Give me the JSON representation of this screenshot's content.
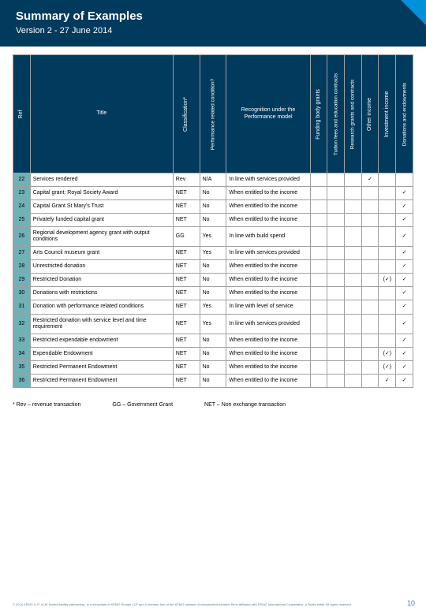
{
  "header": {
    "title": "Summary of Examples",
    "version": "Version 2 - 27 June 2014"
  },
  "columns": {
    "ref": "Ref",
    "title": "Title",
    "classification": "Classification*",
    "performance": "Performance related condition?",
    "recognition": "Recognition under the Performance model",
    "funding": "Funding body grants",
    "tuition": "Tuition fees and education contracts",
    "research": "Research grants and contracts",
    "other": "Other income",
    "investment": "Investment income",
    "donations": "Donations and endowments"
  },
  "rows": [
    {
      "ref": "22",
      "title": "Services rendered",
      "class": "Rev",
      "perf": "N/A",
      "recog": "In line with services provided",
      "c": [
        " ",
        " ",
        " ",
        "✓",
        " ",
        " "
      ]
    },
    {
      "ref": "23",
      "title": "Capital grant: Royal Society Award",
      "class": "NET",
      "perf": "No",
      "recog": "When entitled to the income",
      "c": [
        " ",
        " ",
        " ",
        " ",
        " ",
        "✓"
      ]
    },
    {
      "ref": "24",
      "title": "Capital Grant St Mary's Trust",
      "class": "NET",
      "perf": "No",
      "recog": "When entitled to the income",
      "c": [
        " ",
        " ",
        " ",
        " ",
        " ",
        "✓"
      ]
    },
    {
      "ref": "25",
      "title": "Privately funded capital grant",
      "class": "NET",
      "perf": "No",
      "recog": "When entitled to the income",
      "c": [
        " ",
        " ",
        " ",
        " ",
        " ",
        "✓"
      ]
    },
    {
      "ref": "26",
      "title": "Regional development agency grant with output conditions",
      "class": "GG",
      "perf": "Yes",
      "recog": "In line with build spend",
      "c": [
        " ",
        " ",
        " ",
        " ",
        " ",
        "✓"
      ]
    },
    {
      "ref": "27",
      "title": "Arts Council museum grant",
      "class": "NET",
      "perf": "Yes",
      "recog": "In line with services provided",
      "c": [
        " ",
        " ",
        " ",
        " ",
        " ",
        "✓"
      ]
    },
    {
      "ref": "28",
      "title": "Unrestricted donation",
      "class": "NET",
      "perf": "No",
      "recog": "When entitled to the income",
      "c": [
        " ",
        " ",
        " ",
        " ",
        " ",
        "✓"
      ]
    },
    {
      "ref": "29",
      "title": "Restricted Donation",
      "class": "NET",
      "perf": "No",
      "recog": "When entitled to the income",
      "c": [
        " ",
        " ",
        " ",
        " ",
        "(✓)",
        "✓"
      ]
    },
    {
      "ref": "30",
      "title": "Donations with restrictions",
      "class": "NET",
      "perf": "No",
      "recog": "When entitled to the income",
      "c": [
        " ",
        " ",
        " ",
        " ",
        " ",
        "✓"
      ]
    },
    {
      "ref": "31",
      "title": "Donation with performance related conditions",
      "class": "NET",
      "perf": "Yes",
      "recog": "In line with level of service",
      "c": [
        " ",
        " ",
        " ",
        " ",
        " ",
        "✓"
      ]
    },
    {
      "ref": "32",
      "title": "Restricted donation with service level and time requirement",
      "class": "NET",
      "perf": "Yes",
      "recog": "In line with services provided",
      "c": [
        " ",
        " ",
        " ",
        " ",
        " ",
        "✓"
      ]
    },
    {
      "ref": "33",
      "title": "Restricted expendable endowment",
      "class": "NET",
      "perf": "No",
      "recog": "When entitled to the income",
      "c": [
        " ",
        " ",
        " ",
        " ",
        " ",
        "✓"
      ]
    },
    {
      "ref": "34",
      "title": "Expendable Endowment",
      "class": "NET",
      "perf": "No",
      "recog": "When entitled to the income",
      "c": [
        " ",
        " ",
        " ",
        " ",
        "(✓)",
        "✓"
      ]
    },
    {
      "ref": "35",
      "title": "Restricted Permanent Endowment",
      "class": "NET",
      "perf": "No",
      "recog": "When entitled to the income",
      "c": [
        " ",
        " ",
        " ",
        " ",
        "(✓)",
        "✓"
      ]
    },
    {
      "ref": "36",
      "title": "Restricted Permanent Endowment",
      "class": "NET",
      "perf": "No",
      "recog": "When entitled to the income",
      "c": [
        " ",
        " ",
        " ",
        " ",
        "✓",
        "✓"
      ]
    }
  ],
  "footnotes": {
    "rev": "* Rev – revenue transaction",
    "gg": "GG – Government Grant",
    "net": "NET – Non exchange transaction"
  },
  "copyright": "© 2014 KPMG LLP, a UK limited liability partnership, is a subsidiary of KPMG Europe LLP and a member firm of the KPMG network of independent member firms affiliated with KPMG International Cooperative, a Swiss entity. All rights reserved.",
  "page": "10"
}
